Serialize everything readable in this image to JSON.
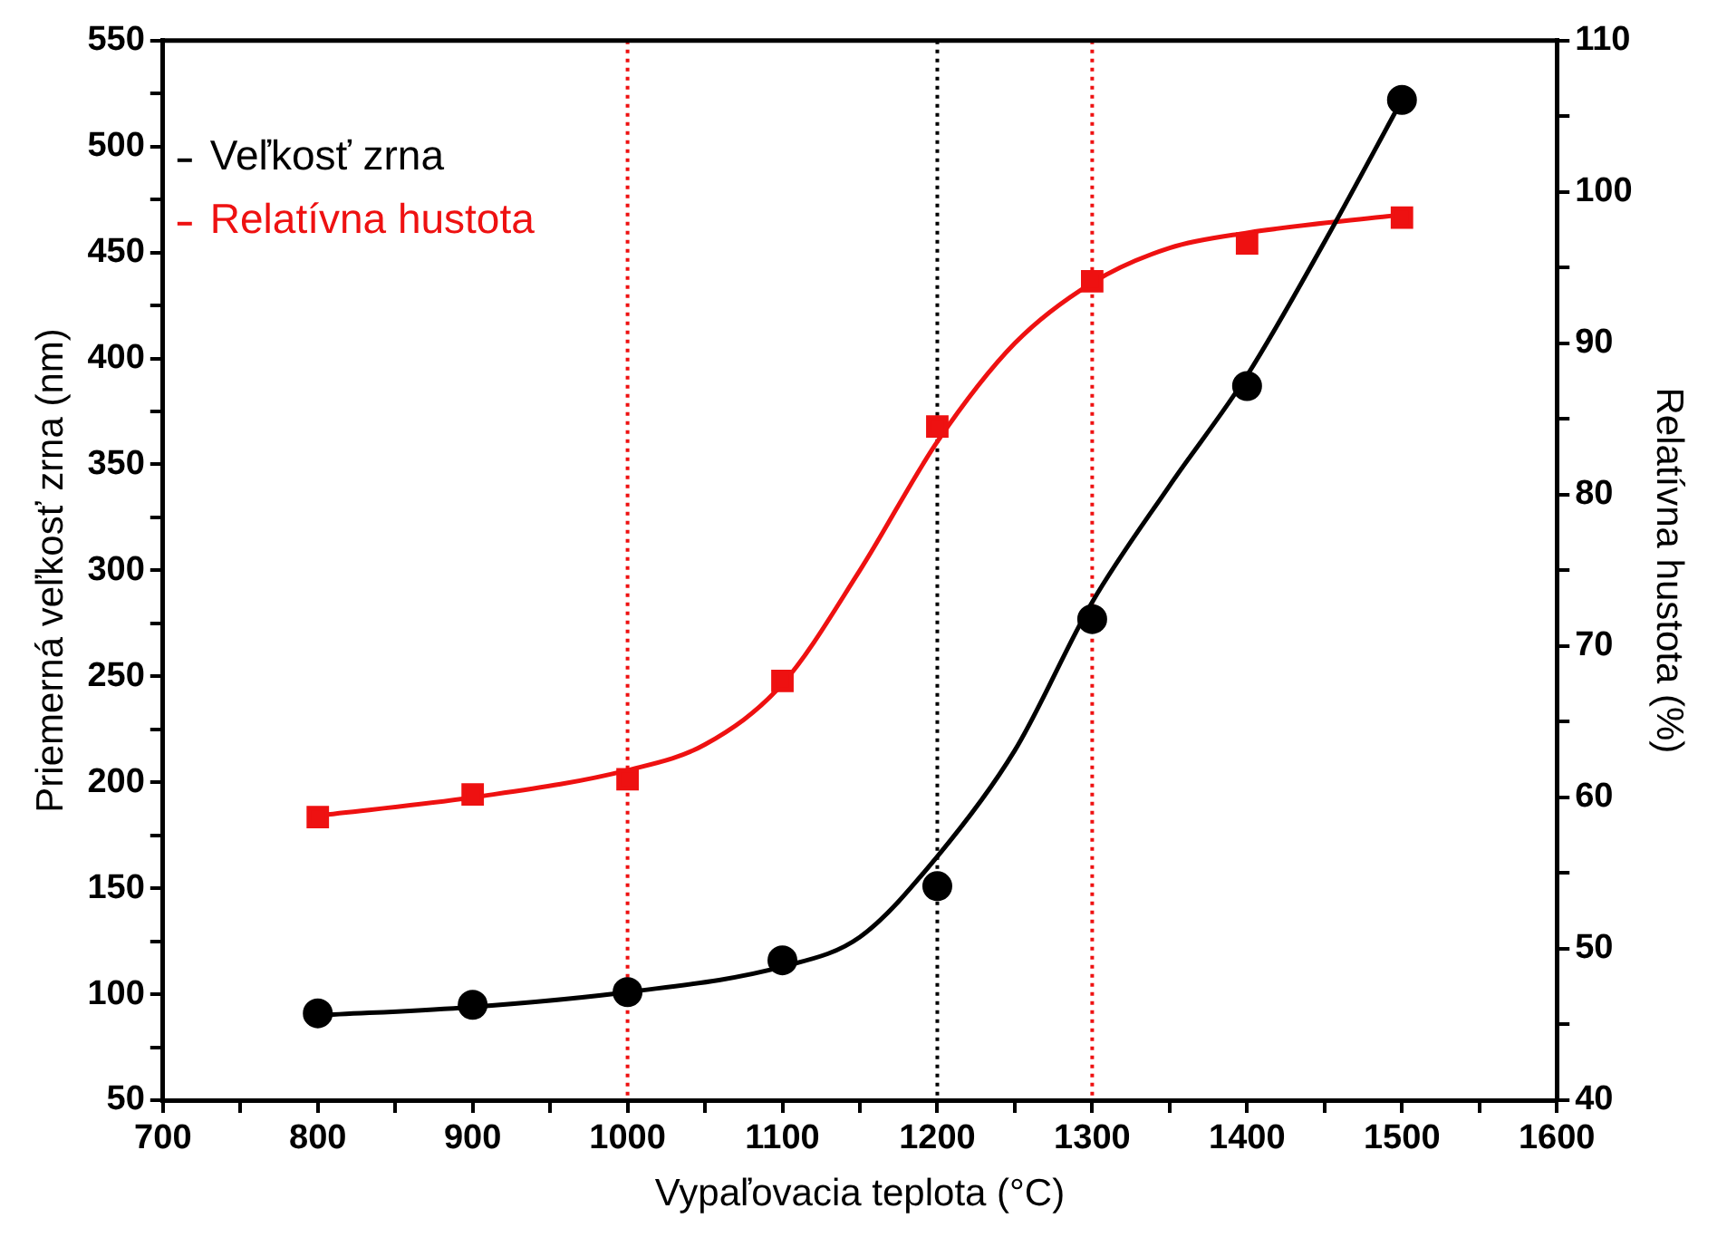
{
  "chart_data": {
    "type": "scatter",
    "xlabel": "Vypaľovacia teplota (°C)",
    "ylabel": "Priemerná veľkosť zrna (nm)",
    "y2label": "Relatívna hustota (%)",
    "xlim": [
      700,
      1600
    ],
    "xticks": [
      700,
      {
        "value": 750,
        "label": null
      },
      800,
      {
        "value": 850,
        "label": null
      },
      900,
      {
        "value": 950,
        "label": null
      },
      1000,
      {
        "value": 1050,
        "label": null
      },
      1100,
      {
        "value": 1150,
        "label": null
      },
      1200,
      {
        "value": 1250,
        "label": null
      },
      1300,
      {
        "value": 1350,
        "label": null
      },
      1400,
      {
        "value": 1450,
        "label": null
      },
      1500,
      {
        "value": 1550,
        "label": null
      },
      1600
    ],
    "ylim": [
      50,
      550
    ],
    "yticks": [
      50,
      {
        "value": 75,
        "label": null
      },
      100,
      {
        "value": 125,
        "label": null
      },
      150,
      {
        "value": 175,
        "label": null
      },
      200,
      {
        "value": 225,
        "label": null
      },
      250,
      {
        "value": 275,
        "label": null
      },
      300,
      {
        "value": 325,
        "label": null
      },
      350,
      {
        "value": 375,
        "label": null
      },
      400,
      {
        "value": 425,
        "label": null
      },
      450,
      {
        "value": 475,
        "label": null
      },
      500,
      {
        "value": 525,
        "label": null
      },
      550
    ],
    "y2lim": [
      40,
      110
    ],
    "y2ticks": [
      40,
      {
        "value": 45,
        "label": null
      },
      50,
      {
        "value": 55,
        "label": null
      },
      60,
      {
        "value": 65,
        "label": null
      },
      70,
      {
        "value": 75,
        "label": null
      },
      80,
      {
        "value": 85,
        "label": null
      },
      90,
      {
        "value": 95,
        "label": null
      },
      100,
      {
        "value": 105,
        "label": null
      },
      110
    ],
    "series": [
      {
        "name": "Veľkosť zrna",
        "color": "#000000",
        "marker": "circle",
        "x": [
          800,
          900,
          1000,
          1100,
          1200,
          1300,
          1400,
          1500
        ],
        "values": [
          91,
          95,
          101,
          116,
          151,
          277,
          387,
          522
        ]
      },
      {
        "name": "Relatívna hustota",
        "color": "#ee1111",
        "marker": "square",
        "axis": "y2",
        "x": [
          800,
          900,
          1000,
          1100,
          1200,
          1300,
          1400,
          1500
        ],
        "values": [
          58.7,
          60.2,
          61.2,
          67.7,
          84.5,
          94.1,
          96.6,
          98.3
        ]
      },
      {
        "type": "line",
        "color": "#000000",
        "marker": "none",
        "x": [
          800,
          900,
          1000,
          1100,
          1150,
          1200,
          1250,
          1300,
          1350,
          1400,
          1450,
          1500
        ],
        "values": [
          90,
          94,
          101,
          113,
          127,
          165,
          215,
          285,
          340,
          392,
          455,
          522
        ]
      },
      {
        "type": "line",
        "color": "#ee1111",
        "marker": "none",
        "axis": "y2",
        "x": [
          800,
          900,
          1000,
          1050,
          1100,
          1150,
          1200,
          1250,
          1300,
          1350,
          1400,
          1500
        ],
        "values": [
          58.8,
          60,
          61.8,
          63.5,
          67.5,
          75,
          83.5,
          90,
          94,
          96.3,
          97.3,
          98.5
        ]
      }
    ],
    "ref_lines": [
      {
        "axis": "x",
        "value": 1000,
        "color": "#ee1111",
        "line_style": "dotted"
      },
      {
        "axis": "x",
        "value": 1200,
        "color": "#000000",
        "line_style": "dotted"
      },
      {
        "axis": "x",
        "value": 1300,
        "color": "#ee1111",
        "line_style": "dotted"
      }
    ],
    "legend": "top left",
    "grid": false
  }
}
